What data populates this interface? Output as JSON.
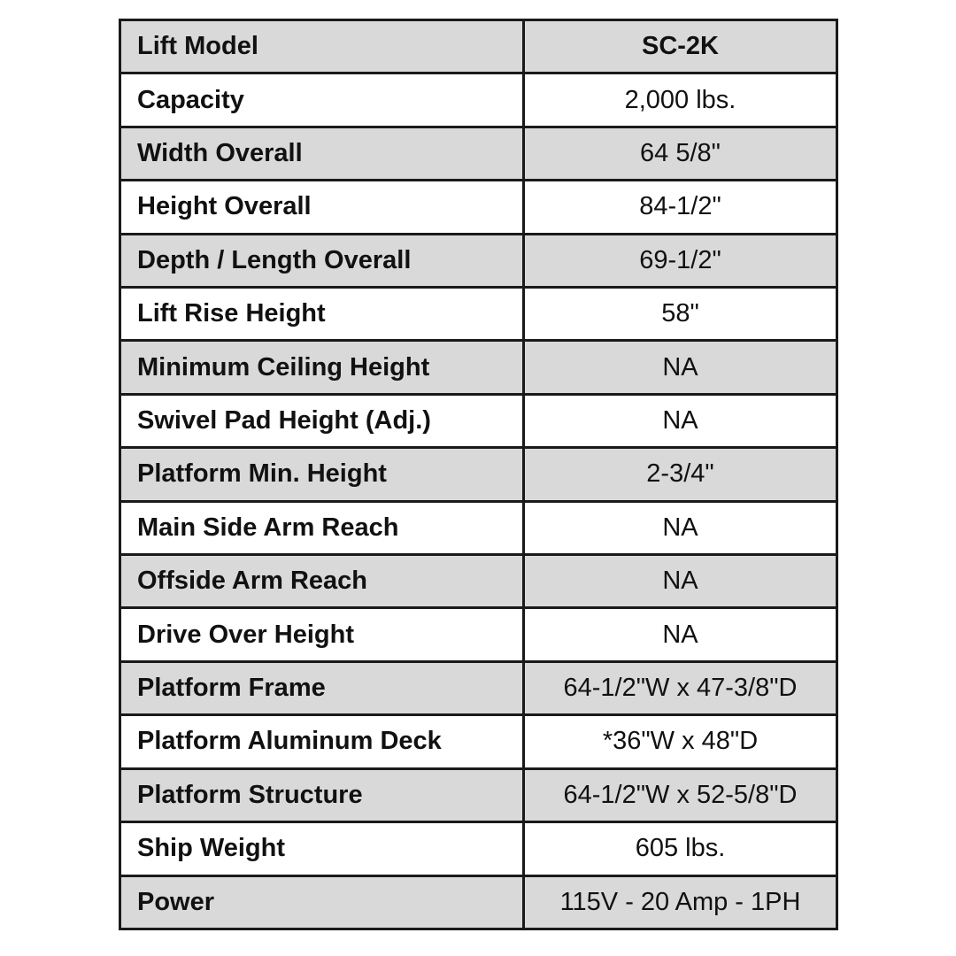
{
  "table": {
    "rows": [
      {
        "label": "Lift Model",
        "value": "SC-2K"
      },
      {
        "label": "Capacity",
        "value": "2,000 lbs."
      },
      {
        "label": "Width Overall",
        "value": "64 5/8\""
      },
      {
        "label": "Height Overall",
        "value": "84-1/2\""
      },
      {
        "label": "Depth / Length Overall",
        "value": "69-1/2\""
      },
      {
        "label": "Lift Rise Height",
        "value": "58\""
      },
      {
        "label": "Minimum Ceiling Height",
        "value": "NA"
      },
      {
        "label": "Swivel Pad Height (Adj.)",
        "value": "NA"
      },
      {
        "label": "Platform Min. Height",
        "value": "2-3/4\""
      },
      {
        "label": "Main Side Arm Reach",
        "value": "NA"
      },
      {
        "label": "Offside Arm Reach",
        "value": "NA"
      },
      {
        "label": "Drive Over Height",
        "value": "NA"
      },
      {
        "label": "Platform Frame",
        "value": "64-1/2\"W x 47-3/8\"D"
      },
      {
        "label": "Platform Aluminum Deck",
        "value": "*36\"W x 48\"D"
      },
      {
        "label": "Platform Structure",
        "value": "64-1/2\"W x 52-5/8\"D"
      },
      {
        "label": "Ship Weight",
        "value": "605 lbs."
      },
      {
        "label": "Power",
        "value": "115V - 20 Amp - 1PH"
      }
    ]
  },
  "colors": {
    "shaded_row": "#d9d9d9",
    "plain_row": "#ffffff",
    "border": "#1a1a1a"
  }
}
